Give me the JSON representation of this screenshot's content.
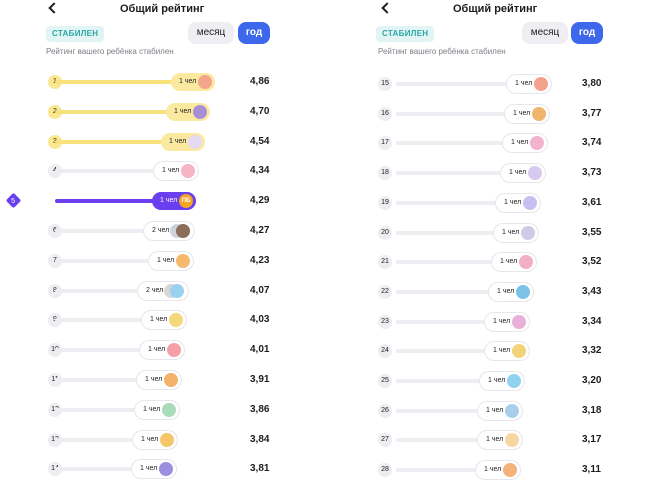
{
  "title": "Общий рейтинг",
  "status_badge": "СТАБИЛЕН",
  "period": {
    "month_label": "месяц",
    "year_label": "год",
    "selected": "год"
  },
  "subtitle": "Рейтинг вашего ребёнка стабилен",
  "colors": {
    "accent": "#3d68ec",
    "active_row": "#6a3ff0",
    "top3": "#f8e27c",
    "badge_text": "#2aa8a8"
  },
  "left_rows": [
    {
      "rank": "1",
      "count": "1 чел",
      "score": "4,86",
      "style": "gold",
      "bar": 0.94,
      "avatars": [
        {
          "color": "#f3a68c",
          "icon": "face-icon"
        }
      ]
    },
    {
      "rank": "2",
      "count": "1 чел",
      "score": "4,70",
      "style": "gold",
      "bar": 0.91,
      "avatars": [
        {
          "color": "#a78fd6",
          "icon": "face-icon"
        }
      ]
    },
    {
      "rank": "3",
      "count": "1 чел",
      "score": "4,54",
      "style": "gold",
      "bar": 0.88,
      "avatars": [
        {
          "color": "#e6d9f2",
          "icon": "face-icon"
        }
      ]
    },
    {
      "rank": "4",
      "count": "1 чел",
      "score": "4,34",
      "style": "normal",
      "bar": 0.84,
      "avatars": [
        {
          "color": "#f5b5c4",
          "icon": "face-icon"
        }
      ]
    },
    {
      "rank": "5",
      "count": "1 чел",
      "score": "4,29",
      "style": "active",
      "bar": 0.83,
      "avatars": [
        {
          "color": "#f5a524",
          "icon": "initials",
          "text": "ПБ"
        }
      ]
    },
    {
      "rank": "6",
      "count": "2 чел",
      "score": "4,27",
      "style": "normal",
      "bar": 0.82,
      "avatars": [
        {
          "color": "#cfd3dc",
          "icon": "face-icon"
        },
        {
          "color": "#8a6d5a",
          "icon": "face-icon"
        }
      ]
    },
    {
      "rank": "7",
      "count": "1 чел",
      "score": "4,23",
      "style": "normal",
      "bar": 0.81,
      "avatars": [
        {
          "color": "#f5b86e",
          "icon": "face-icon"
        }
      ]
    },
    {
      "rank": "8",
      "count": "2 чел",
      "score": "4,07",
      "style": "normal",
      "bar": 0.78,
      "avatars": [
        {
          "color": "#d7d7d7",
          "icon": "face-icon"
        },
        {
          "color": "#9ad0f0",
          "icon": "face-icon"
        }
      ]
    },
    {
      "rank": "9",
      "count": "1 чел",
      "score": "4,03",
      "style": "normal",
      "bar": 0.77,
      "avatars": [
        {
          "color": "#f7d77c",
          "icon": "face-icon"
        }
      ]
    },
    {
      "rank": "10",
      "count": "1 чел",
      "score": "4,01",
      "style": "normal",
      "bar": 0.76,
      "avatars": [
        {
          "color": "#f5a0a8",
          "icon": "face-icon"
        }
      ]
    },
    {
      "rank": "11",
      "count": "1 чел",
      "score": "3,91",
      "style": "normal",
      "bar": 0.74,
      "avatars": [
        {
          "color": "#f3b16a",
          "icon": "face-icon"
        }
      ]
    },
    {
      "rank": "12",
      "count": "1 чел",
      "score": "3,86",
      "style": "normal",
      "bar": 0.73,
      "avatars": [
        {
          "color": "#a8dbb8",
          "icon": "face-icon"
        }
      ]
    },
    {
      "rank": "13",
      "count": "1 чел",
      "score": "3,84",
      "style": "normal",
      "bar": 0.72,
      "avatars": [
        {
          "color": "#f6c66a",
          "icon": "face-icon"
        }
      ]
    },
    {
      "rank": "14",
      "count": "1 чел",
      "score": "3,81",
      "style": "normal",
      "bar": 0.71,
      "avatars": [
        {
          "color": "#9b8fe0",
          "icon": "face-icon"
        }
      ]
    }
  ],
  "right_rows": [
    {
      "rank": "15",
      "count": "1 чел",
      "score": "3,80",
      "bar": 0.86,
      "avatars": [
        {
          "color": "#f3a18a",
          "icon": "face-icon"
        }
      ]
    },
    {
      "rank": "16",
      "count": "1 чел",
      "score": "3,77",
      "bar": 0.85,
      "avatars": [
        {
          "color": "#f1b46b",
          "icon": "face-icon"
        }
      ]
    },
    {
      "rank": "17",
      "count": "1 чел",
      "score": "3,74",
      "bar": 0.84,
      "avatars": [
        {
          "color": "#f3b3cf",
          "icon": "face-icon"
        }
      ]
    },
    {
      "rank": "18",
      "count": "1 чел",
      "score": "3,73",
      "bar": 0.83,
      "avatars": [
        {
          "color": "#d8c9f0",
          "icon": "face-icon"
        }
      ]
    },
    {
      "rank": "19",
      "count": "1 чел",
      "score": "3,61",
      "bar": 0.8,
      "avatars": [
        {
          "color": "#c8bff0",
          "icon": "face-icon"
        }
      ]
    },
    {
      "rank": "20",
      "count": "1 чел",
      "score": "3,55",
      "bar": 0.79,
      "avatars": [
        {
          "color": "#cfc9ea",
          "icon": "face-icon"
        }
      ]
    },
    {
      "rank": "21",
      "count": "1 чел",
      "score": "3,52",
      "bar": 0.78,
      "avatars": [
        {
          "color": "#f2b0c8",
          "icon": "face-icon"
        }
      ]
    },
    {
      "rank": "22",
      "count": "1 чел",
      "score": "3,43",
      "bar": 0.76,
      "avatars": [
        {
          "color": "#7fc2e8",
          "icon": "face-icon"
        }
      ]
    },
    {
      "rank": "23",
      "count": "1 чел",
      "score": "3,34",
      "bar": 0.74,
      "avatars": [
        {
          "color": "#e8b0d8",
          "icon": "face-icon"
        }
      ]
    },
    {
      "rank": "24",
      "count": "1 чел",
      "score": "3,32",
      "bar": 0.74,
      "avatars": [
        {
          "color": "#f3d27a",
          "icon": "face-icon"
        }
      ]
    },
    {
      "rank": "25",
      "count": "1 чел",
      "score": "3,20",
      "bar": 0.71,
      "avatars": [
        {
          "color": "#8fd3f0",
          "icon": "face-icon"
        }
      ]
    },
    {
      "rank": "26",
      "count": "1 чел",
      "score": "3,18",
      "bar": 0.7,
      "avatars": [
        {
          "color": "#a7cfea",
          "icon": "face-icon"
        }
      ]
    },
    {
      "rank": "27",
      "count": "1 чел",
      "score": "3,17",
      "bar": 0.7,
      "avatars": [
        {
          "color": "#f5d7a0",
          "icon": "face-icon"
        }
      ]
    },
    {
      "rank": "28",
      "count": "1 чел",
      "score": "3,11",
      "bar": 0.69,
      "avatars": [
        {
          "color": "#f3b27c",
          "icon": "face-icon"
        }
      ]
    }
  ]
}
